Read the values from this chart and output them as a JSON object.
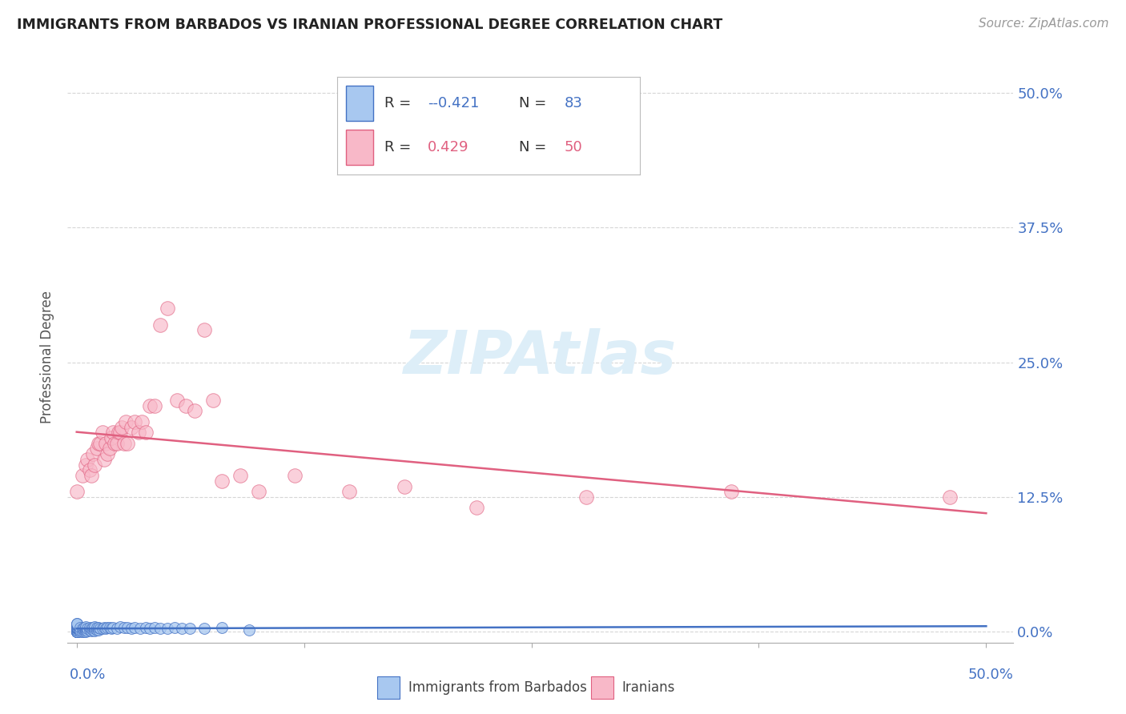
{
  "title": "IMMIGRANTS FROM BARBADOS VS IRANIAN PROFESSIONAL DEGREE CORRELATION CHART",
  "source": "Source: ZipAtlas.com",
  "ylabel": "Professional Degree",
  "ytick_values": [
    0.0,
    0.125,
    0.25,
    0.375,
    0.5
  ],
  "xtick_values": [
    0.0,
    0.125,
    0.25,
    0.375,
    0.5
  ],
  "xlim": [
    -0.005,
    0.515
  ],
  "ylim": [
    -0.01,
    0.52
  ],
  "legend_r_barbados": "-0.421",
  "legend_n_barbados": "83",
  "legend_r_iranians": "0.429",
  "legend_n_iranians": "50",
  "color_barbados": "#a8c8f0",
  "color_iranians": "#f8b8c8",
  "line_color_barbados": "#4472c4",
  "line_color_iranians": "#e06080",
  "watermark_color": "#ddeef8",
  "title_color": "#222222",
  "axis_tick_color": "#4472c4",
  "background_color": "#ffffff",
  "grid_color": "#cccccc",
  "barbados_x": [
    0.0,
    0.0,
    0.0,
    0.0,
    0.0,
    0.0,
    0.0,
    0.0,
    0.0,
    0.0,
    0.0,
    0.0,
    0.0,
    0.0,
    0.0,
    0.0,
    0.0,
    0.0,
    0.0,
    0.0,
    0.0,
    0.0,
    0.0,
    0.0,
    0.0,
    0.0,
    0.0,
    0.0,
    0.0,
    0.0,
    0.002,
    0.002,
    0.002,
    0.003,
    0.003,
    0.004,
    0.004,
    0.004,
    0.005,
    0.005,
    0.005,
    0.005,
    0.006,
    0.006,
    0.007,
    0.007,
    0.008,
    0.008,
    0.009,
    0.009,
    0.01,
    0.01,
    0.01,
    0.011,
    0.011,
    0.012,
    0.012,
    0.013,
    0.014,
    0.015,
    0.016,
    0.017,
    0.018,
    0.019,
    0.02,
    0.022,
    0.024,
    0.026,
    0.028,
    0.03,
    0.032,
    0.035,
    0.038,
    0.04,
    0.043,
    0.046,
    0.05,
    0.054,
    0.058,
    0.062,
    0.07,
    0.08,
    0.095
  ],
  "barbados_y": [
    0.0,
    0.0,
    0.0,
    0.0,
    0.0,
    0.0,
    0.0,
    0.0,
    0.0,
    0.0,
    0.002,
    0.002,
    0.003,
    0.003,
    0.004,
    0.004,
    0.004,
    0.004,
    0.005,
    0.005,
    0.005,
    0.005,
    0.006,
    0.006,
    0.006,
    0.007,
    0.007,
    0.007,
    0.008,
    0.008,
    0.0,
    0.002,
    0.004,
    0.0,
    0.003,
    0.0,
    0.002,
    0.004,
    0.0,
    0.002,
    0.003,
    0.005,
    0.001,
    0.003,
    0.002,
    0.004,
    0.001,
    0.003,
    0.002,
    0.004,
    0.001,
    0.003,
    0.005,
    0.002,
    0.004,
    0.002,
    0.004,
    0.003,
    0.003,
    0.004,
    0.003,
    0.004,
    0.004,
    0.003,
    0.004,
    0.003,
    0.005,
    0.004,
    0.004,
    0.003,
    0.004,
    0.003,
    0.004,
    0.003,
    0.004,
    0.003,
    0.003,
    0.004,
    0.003,
    0.003,
    0.003,
    0.004,
    0.002
  ],
  "iranians_x": [
    0.0,
    0.003,
    0.005,
    0.006,
    0.007,
    0.008,
    0.009,
    0.01,
    0.011,
    0.012,
    0.013,
    0.014,
    0.015,
    0.016,
    0.017,
    0.018,
    0.019,
    0.02,
    0.021,
    0.022,
    0.023,
    0.024,
    0.025,
    0.026,
    0.027,
    0.028,
    0.03,
    0.032,
    0.034,
    0.036,
    0.038,
    0.04,
    0.043,
    0.046,
    0.05,
    0.055,
    0.06,
    0.065,
    0.07,
    0.075,
    0.08,
    0.09,
    0.1,
    0.12,
    0.15,
    0.18,
    0.22,
    0.28,
    0.36,
    0.48
  ],
  "iranians_y": [
    0.13,
    0.145,
    0.155,
    0.16,
    0.15,
    0.145,
    0.165,
    0.155,
    0.17,
    0.175,
    0.175,
    0.185,
    0.16,
    0.175,
    0.165,
    0.17,
    0.18,
    0.185,
    0.175,
    0.175,
    0.185,
    0.185,
    0.19,
    0.175,
    0.195,
    0.175,
    0.19,
    0.195,
    0.185,
    0.195,
    0.185,
    0.21,
    0.21,
    0.285,
    0.3,
    0.215,
    0.21,
    0.205,
    0.28,
    0.215,
    0.14,
    0.145,
    0.13,
    0.145,
    0.13,
    0.135,
    0.115,
    0.125,
    0.13,
    0.125
  ]
}
